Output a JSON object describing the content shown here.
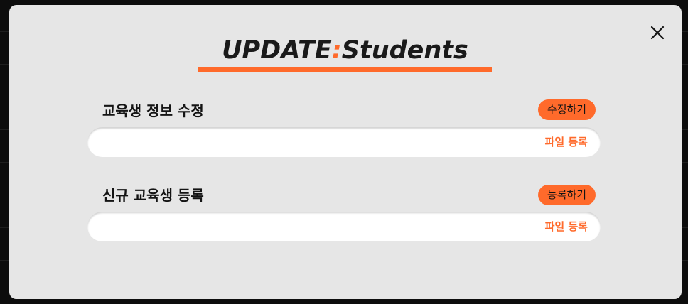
{
  "modal": {
    "title_main": "UPDATE",
    "title_separator": ":",
    "title_sub": "Students",
    "close_icon": "close-icon",
    "accent_color": "#ff6a2b",
    "background_color": "#e6e6e6"
  },
  "sections": [
    {
      "label": "교육생 정보 수정",
      "action_label": "수정하기",
      "file_link_label": "파일 등록"
    },
    {
      "label": "신규 교육생 등록",
      "action_label": "등록하기",
      "file_link_label": "파일 등록"
    }
  ]
}
